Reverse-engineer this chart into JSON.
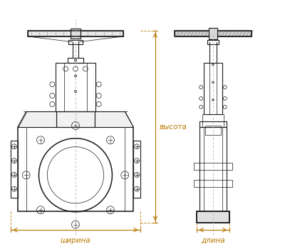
{
  "bg_color": "#ffffff",
  "line_color": "#1a1a1a",
  "dim_color": "#b87800",
  "fig_width": 4.0,
  "fig_height": 3.46,
  "dpi": 100,
  "label_ширина": "ширина",
  "label_длина": "длина",
  "label_высота": "высота",
  "label_fontsize": 7.5
}
